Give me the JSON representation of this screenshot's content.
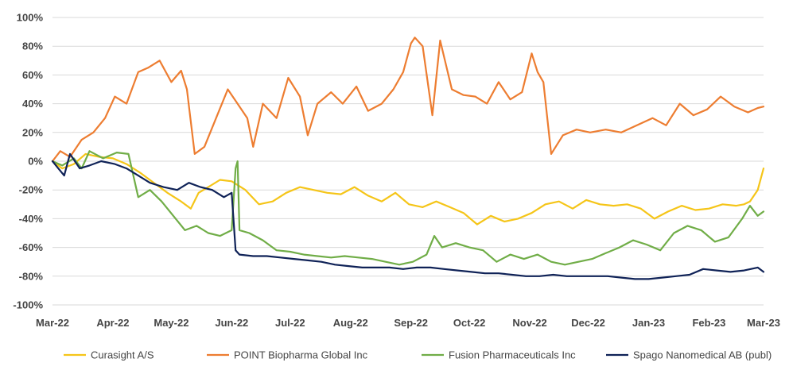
{
  "chart_data": {
    "type": "line",
    "title": "",
    "xlabel": "",
    "ylabel": "",
    "ylim": [
      -100,
      100
    ],
    "yticks": [
      -100,
      -80,
      -60,
      -40,
      -20,
      0,
      20,
      40,
      60,
      80,
      100
    ],
    "ytick_labels": [
      "-100%",
      "-80%",
      "-60%",
      "-40%",
      "-20%",
      "0%",
      "20%",
      "40%",
      "60%",
      "80%",
      "100%"
    ],
    "xlim": [
      "2022-03-01",
      "2023-03-01"
    ],
    "xticks": [
      "2022-03-01",
      "2022-04-01",
      "2022-05-01",
      "2022-06-01",
      "2022-07-01",
      "2022-08-01",
      "2022-09-01",
      "2022-10-01",
      "2022-11-01",
      "2022-12-01",
      "2023-01-01",
      "2023-02-01",
      "2023-03-01"
    ],
    "xtick_labels": [
      "Mar-22",
      "Apr-22",
      "May-22",
      "Jun-22",
      "Jul-22",
      "Aug-22",
      "Sep-22",
      "Oct-22",
      "Nov-22",
      "Dec-22",
      "Jan-23",
      "Feb-23",
      "Mar-23"
    ],
    "grid": "horizontal",
    "legend_position": "bottom",
    "series": [
      {
        "name": "Curasight A/S",
        "color": "#f5c518",
        "x": [
          "2022-03-01",
          "2022-03-06",
          "2022-03-12",
          "2022-03-18",
          "2022-03-25",
          "2022-04-01",
          "2022-04-08",
          "2022-04-15",
          "2022-04-22",
          "2022-04-29",
          "2022-05-06",
          "2022-05-11",
          "2022-05-15",
          "2022-05-20",
          "2022-05-26",
          "2022-06-01",
          "2022-06-08",
          "2022-06-15",
          "2022-06-22",
          "2022-06-29",
          "2022-07-06",
          "2022-07-13",
          "2022-07-20",
          "2022-07-27",
          "2022-08-03",
          "2022-08-10",
          "2022-08-17",
          "2022-08-24",
          "2022-08-31",
          "2022-09-07",
          "2022-09-14",
          "2022-09-21",
          "2022-09-28",
          "2022-10-05",
          "2022-10-12",
          "2022-10-19",
          "2022-10-26",
          "2022-11-02",
          "2022-11-09",
          "2022-11-16",
          "2022-11-23",
          "2022-11-30",
          "2022-12-07",
          "2022-12-14",
          "2022-12-21",
          "2022-12-28",
          "2023-01-04",
          "2023-01-11",
          "2023-01-18",
          "2023-01-25",
          "2023-02-01",
          "2023-02-08",
          "2023-02-15",
          "2023-02-19",
          "2023-02-22",
          "2023-02-26",
          "2023-03-01"
        ],
        "y": [
          0,
          -5,
          -2,
          5,
          3,
          2,
          -2,
          -8,
          -15,
          -22,
          -28,
          -33,
          -22,
          -18,
          -13,
          -14,
          -20,
          -30,
          -28,
          -22,
          -18,
          -20,
          -22,
          -23,
          -18,
          -24,
          -28,
          -22,
          -30,
          -32,
          -28,
          -32,
          -36,
          -44,
          -38,
          -42,
          -40,
          -36,
          -30,
          -28,
          -33,
          -27,
          -30,
          -31,
          -30,
          -33,
          -40,
          -35,
          -31,
          -34,
          -33,
          -30,
          -31,
          -30,
          -28,
          -20,
          -5
        ]
      },
      {
        "name": "POINT Biopharma Global Inc",
        "color": "#ed7d31",
        "x": [
          "2022-03-01",
          "2022-03-05",
          "2022-03-10",
          "2022-03-16",
          "2022-03-22",
          "2022-03-28",
          "2022-04-02",
          "2022-04-08",
          "2022-04-14",
          "2022-04-19",
          "2022-04-25",
          "2022-05-01",
          "2022-05-06",
          "2022-05-09",
          "2022-05-13",
          "2022-05-18",
          "2022-05-24",
          "2022-05-30",
          "2022-06-04",
          "2022-06-09",
          "2022-06-12",
          "2022-06-17",
          "2022-06-24",
          "2022-06-30",
          "2022-07-06",
          "2022-07-10",
          "2022-07-15",
          "2022-07-22",
          "2022-07-28",
          "2022-08-04",
          "2022-08-10",
          "2022-08-17",
          "2022-08-23",
          "2022-08-28",
          "2022-09-01",
          "2022-09-03",
          "2022-09-07",
          "2022-09-12",
          "2022-09-16",
          "2022-09-22",
          "2022-09-28",
          "2022-10-04",
          "2022-10-10",
          "2022-10-16",
          "2022-10-22",
          "2022-10-28",
          "2022-11-02",
          "2022-11-05",
          "2022-11-08",
          "2022-11-12",
          "2022-11-18",
          "2022-11-25",
          "2022-12-02",
          "2022-12-10",
          "2022-12-18",
          "2022-12-26",
          "2023-01-03",
          "2023-01-10",
          "2023-01-17",
          "2023-01-24",
          "2023-01-31",
          "2023-02-07",
          "2023-02-14",
          "2023-02-21",
          "2023-02-26",
          "2023-03-01"
        ],
        "y": [
          0,
          7,
          3,
          15,
          20,
          30,
          45,
          40,
          62,
          65,
          70,
          55,
          63,
          50,
          5,
          10,
          30,
          50,
          40,
          30,
          10,
          40,
          30,
          58,
          45,
          18,
          40,
          48,
          40,
          52,
          35,
          40,
          50,
          62,
          82,
          86,
          80,
          32,
          84,
          50,
          46,
          45,
          40,
          55,
          43,
          48,
          75,
          62,
          55,
          5,
          18,
          22,
          20,
          22,
          20,
          25,
          30,
          25,
          40,
          32,
          36,
          45,
          38,
          34,
          37,
          38
        ]
      },
      {
        "name": "Fusion Pharmaceuticals Inc",
        "color": "#70ad47",
        "x": [
          "2022-03-01",
          "2022-03-06",
          "2022-03-12",
          "2022-03-16",
          "2022-03-20",
          "2022-03-27",
          "2022-04-03",
          "2022-04-09",
          "2022-04-14",
          "2022-04-20",
          "2022-04-26",
          "2022-05-02",
          "2022-05-08",
          "2022-05-14",
          "2022-05-20",
          "2022-05-26",
          "2022-06-01",
          "2022-06-03",
          "2022-06-04",
          "2022-06-05",
          "2022-06-10",
          "2022-06-17",
          "2022-06-24",
          "2022-07-01",
          "2022-07-08",
          "2022-07-15",
          "2022-07-22",
          "2022-07-29",
          "2022-08-05",
          "2022-08-12",
          "2022-08-19",
          "2022-08-26",
          "2022-09-02",
          "2022-09-09",
          "2022-09-13",
          "2022-09-17",
          "2022-09-24",
          "2022-10-01",
          "2022-10-08",
          "2022-10-15",
          "2022-10-22",
          "2022-10-29",
          "2022-11-05",
          "2022-11-12",
          "2022-11-19",
          "2022-11-26",
          "2022-12-03",
          "2022-12-10",
          "2022-12-17",
          "2022-12-24",
          "2022-12-31",
          "2023-01-07",
          "2023-01-14",
          "2023-01-21",
          "2023-01-28",
          "2023-02-04",
          "2023-02-11",
          "2023-02-18",
          "2023-02-22",
          "2023-02-26",
          "2023-03-01"
        ],
        "y": [
          0,
          -3,
          2,
          -5,
          7,
          2,
          6,
          5,
          -25,
          -20,
          -28,
          -38,
          -48,
          -45,
          -50,
          -52,
          -48,
          -5,
          0,
          -48,
          -50,
          -55,
          -62,
          -63,
          -65,
          -66,
          -67,
          -66,
          -67,
          -68,
          -70,
          -72,
          -70,
          -65,
          -52,
          -60,
          -57,
          -60,
          -62,
          -70,
          -65,
          -68,
          -65,
          -70,
          -72,
          -70,
          -68,
          -64,
          -60,
          -55,
          -58,
          -62,
          -50,
          -45,
          -48,
          -56,
          -53,
          -40,
          -31,
          -38,
          -35
        ]
      },
      {
        "name": "Spago Nanomedical AB (publ)",
        "color": "#0f2257",
        "x": [
          "2022-03-01",
          "2022-03-04",
          "2022-03-07",
          "2022-03-10",
          "2022-03-15",
          "2022-03-20",
          "2022-03-26",
          "2022-04-02",
          "2022-04-08",
          "2022-04-14",
          "2022-04-20",
          "2022-04-27",
          "2022-05-04",
          "2022-05-10",
          "2022-05-16",
          "2022-05-22",
          "2022-05-28",
          "2022-06-01",
          "2022-06-03",
          "2022-06-05",
          "2022-06-12",
          "2022-06-19",
          "2022-06-26",
          "2022-07-03",
          "2022-07-10",
          "2022-07-17",
          "2022-07-24",
          "2022-07-31",
          "2022-08-07",
          "2022-08-14",
          "2022-08-21",
          "2022-08-28",
          "2022-09-04",
          "2022-09-11",
          "2022-09-18",
          "2022-09-25",
          "2022-10-02",
          "2022-10-09",
          "2022-10-16",
          "2022-10-23",
          "2022-10-30",
          "2022-11-06",
          "2022-11-13",
          "2022-11-20",
          "2022-11-27",
          "2022-12-04",
          "2022-12-11",
          "2022-12-18",
          "2022-12-25",
          "2023-01-01",
          "2023-01-08",
          "2023-01-15",
          "2023-01-22",
          "2023-01-29",
          "2023-02-05",
          "2023-02-12",
          "2023-02-19",
          "2023-02-26",
          "2023-03-01"
        ],
        "y": [
          0,
          -5,
          -10,
          5,
          -5,
          -3,
          0,
          -2,
          -5,
          -10,
          -15,
          -18,
          -20,
          -15,
          -18,
          -20,
          -25,
          -22,
          -62,
          -65,
          -66,
          -66,
          -67,
          -68,
          -69,
          -70,
          -72,
          -73,
          -74,
          -74,
          -74,
          -75,
          -74,
          -74,
          -75,
          -76,
          -77,
          -78,
          -78,
          -79,
          -80,
          -80,
          -79,
          -80,
          -80,
          -80,
          -80,
          -81,
          -82,
          -82,
          -81,
          -80,
          -79,
          -75,
          -76,
          -77,
          -76,
          -74,
          -77
        ]
      }
    ]
  }
}
